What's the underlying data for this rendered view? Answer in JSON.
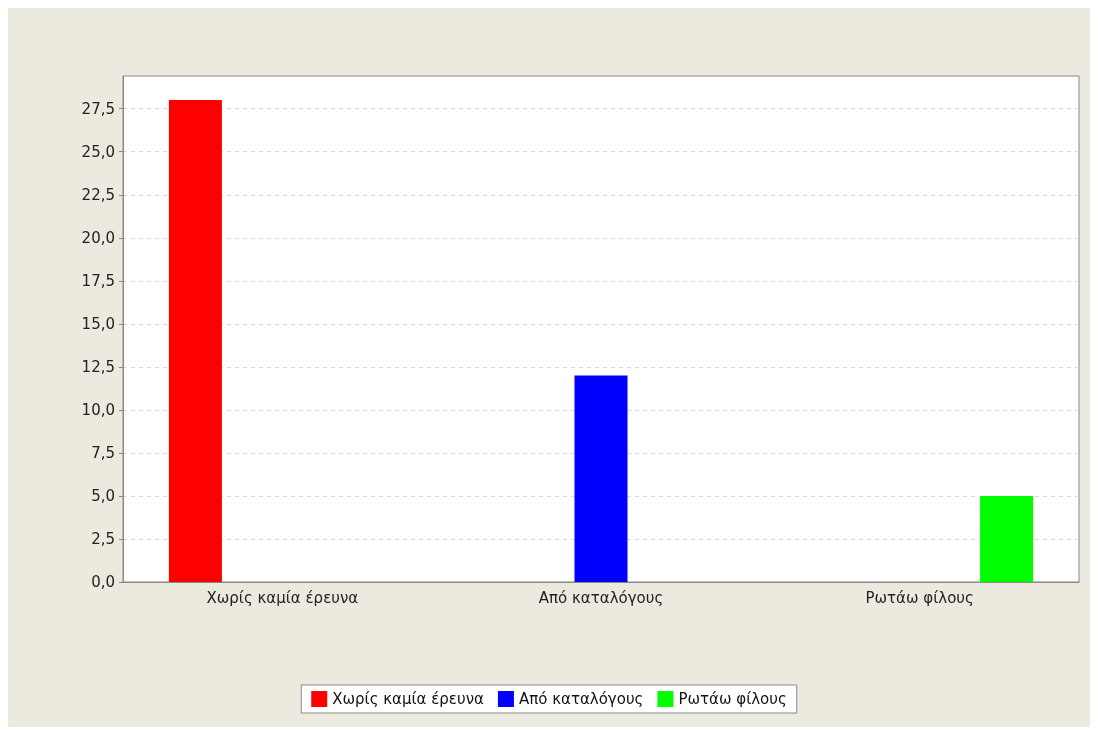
{
  "chart_data": {
    "type": "bar",
    "categories": [
      "Χωρίς καμία έρευνα",
      "Από καταλόγους",
      "Ρωτάω φίλους"
    ],
    "series": [
      {
        "name": "Χωρίς καμία έρευνα",
        "color": "#ff0000",
        "values": [
          28,
          null,
          null
        ]
      },
      {
        "name": "Από καταλόγους",
        "color": "#0000ff",
        "values": [
          null,
          12,
          null
        ]
      },
      {
        "name": "Ρωτάω φίλους",
        "color": "#00ff00",
        "values": [
          null,
          null,
          5
        ]
      }
    ],
    "ylim": [
      0,
      29.4
    ],
    "yticks": [
      {
        "value": 0,
        "label": "0,0"
      },
      {
        "value": 2.5,
        "label": "2,5"
      },
      {
        "value": 5,
        "label": "5,0"
      },
      {
        "value": 7.5,
        "label": "7,5"
      },
      {
        "value": 10,
        "label": "10,0"
      },
      {
        "value": 12.5,
        "label": "12,5"
      },
      {
        "value": 15,
        "label": "15,0"
      },
      {
        "value": 17.5,
        "label": "17,5"
      },
      {
        "value": 20,
        "label": "20,0"
      },
      {
        "value": 22.5,
        "label": "22,5"
      },
      {
        "value": 25,
        "label": "25,0"
      },
      {
        "value": 27.5,
        "label": "27,5"
      }
    ],
    "grid": "y",
    "legend": "bottom"
  }
}
